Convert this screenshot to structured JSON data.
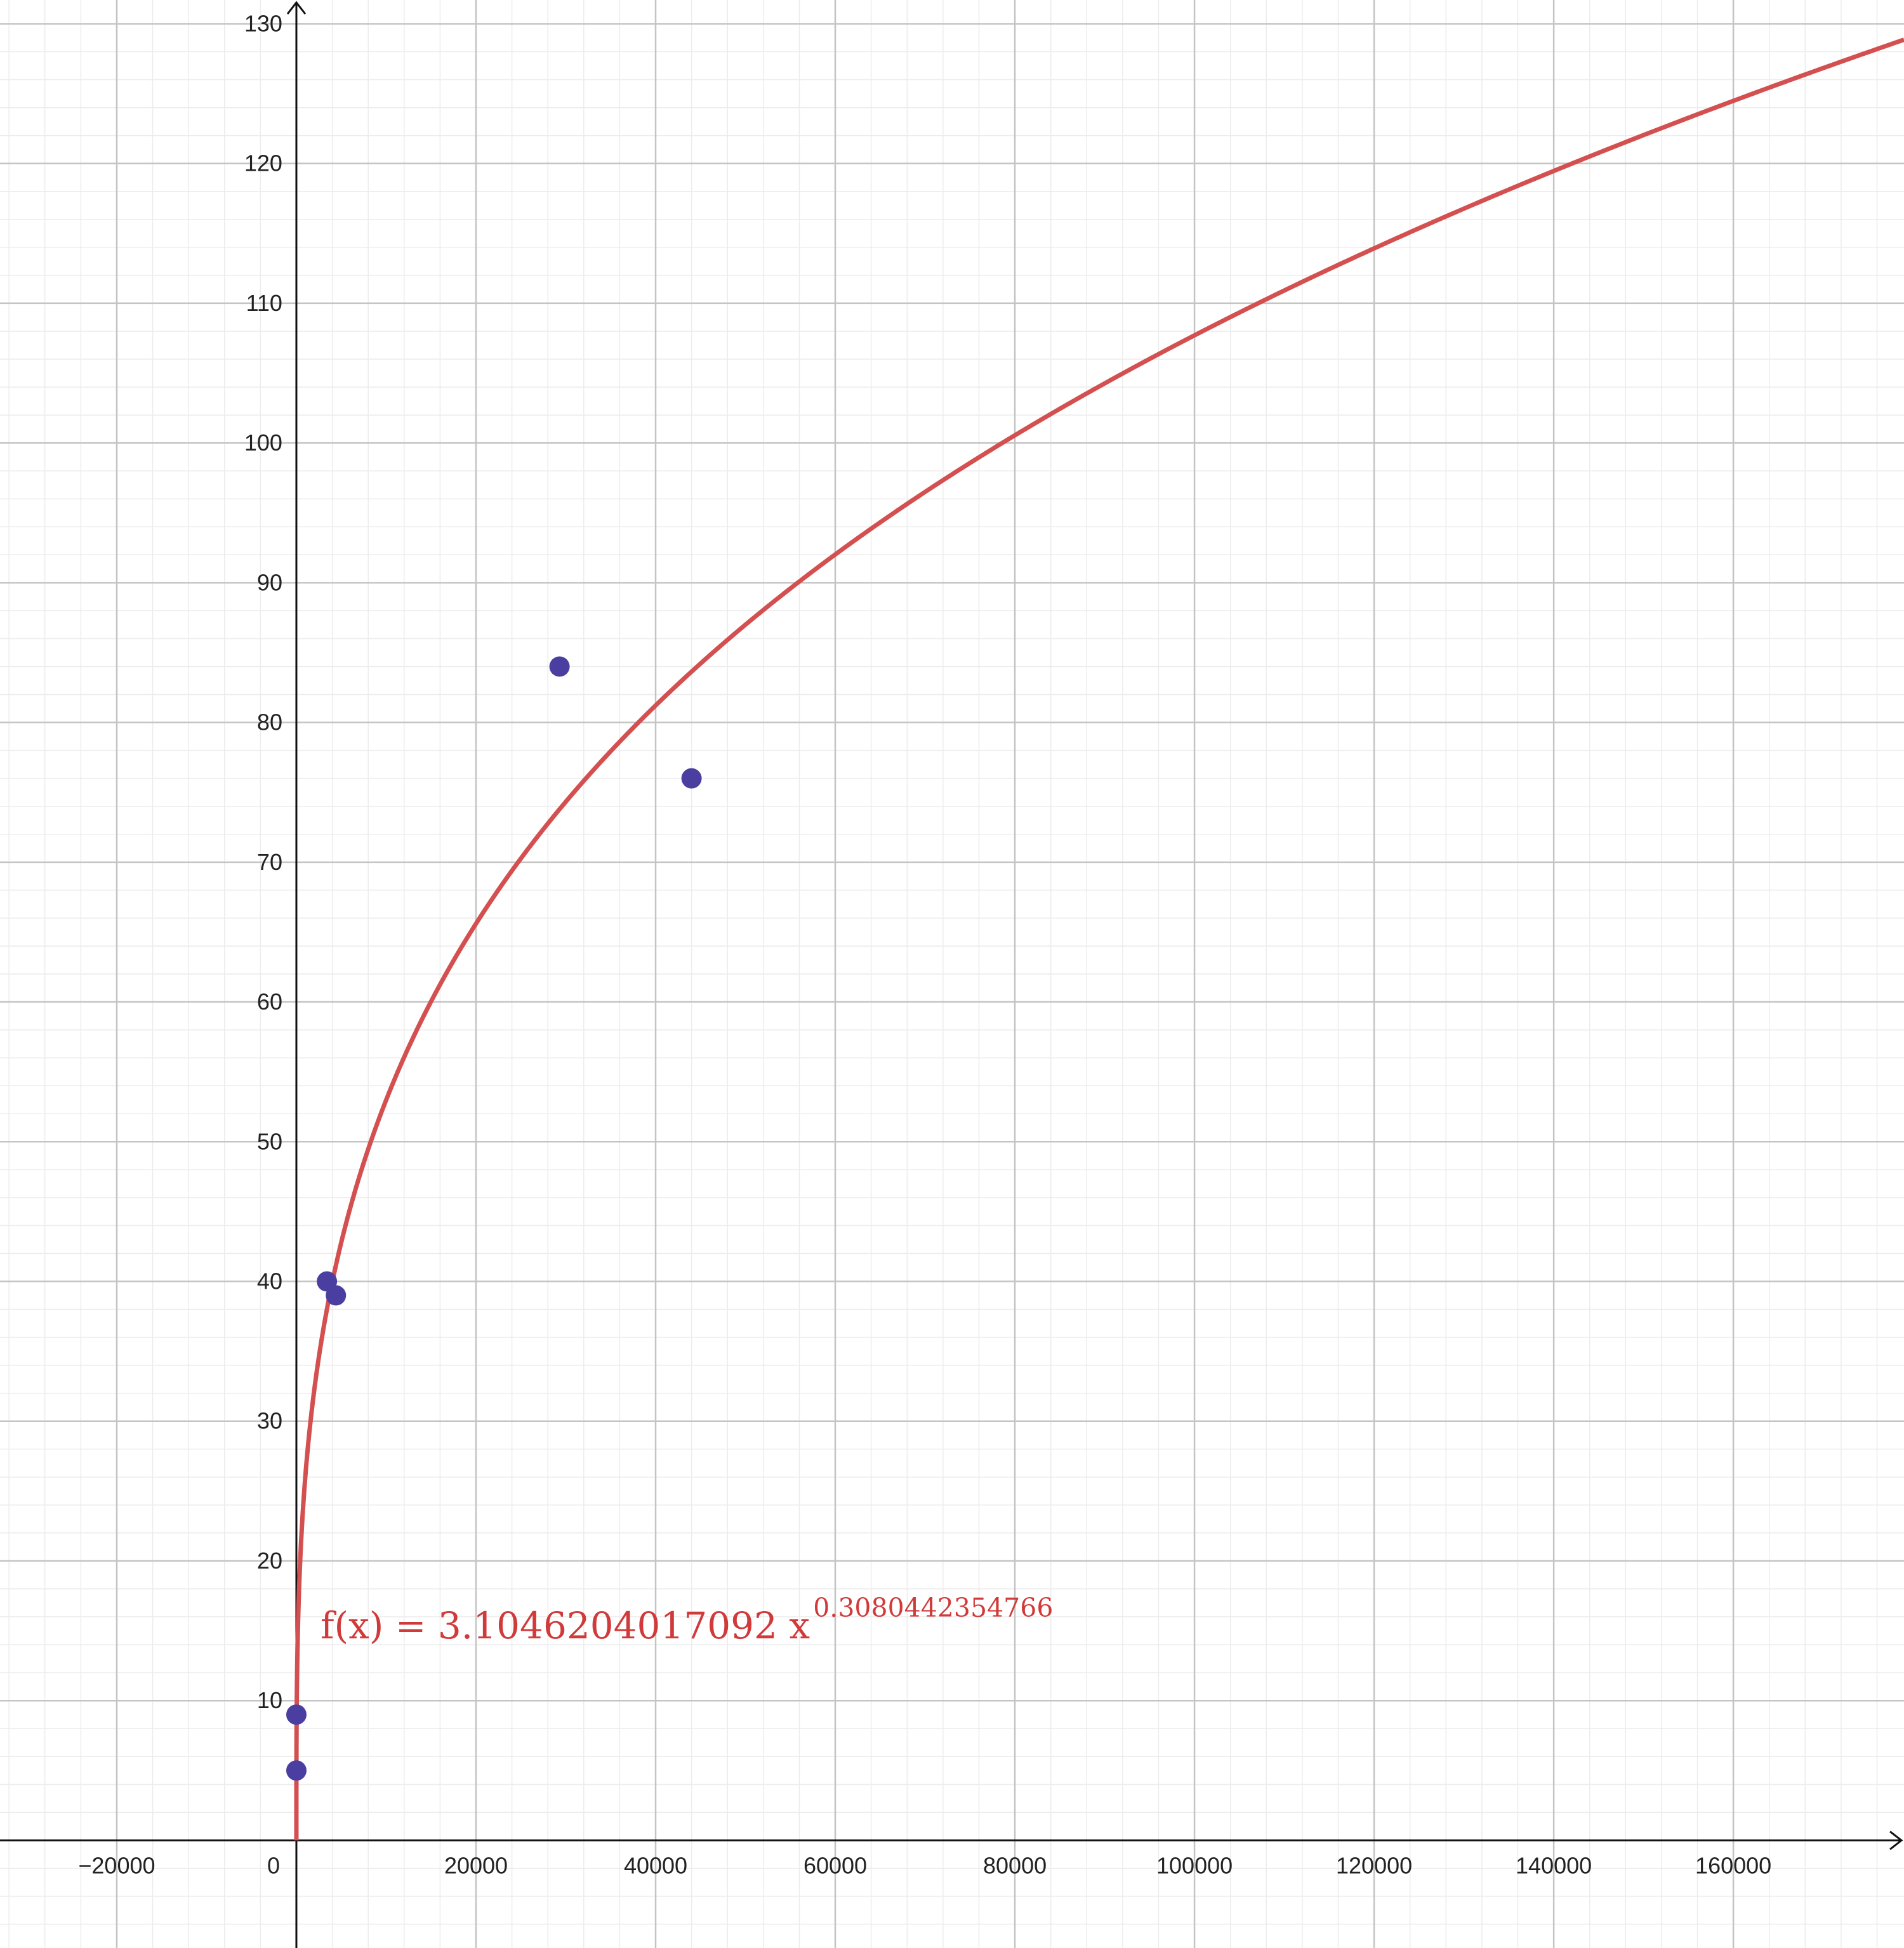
{
  "chart_data": {
    "type": "scatter",
    "title": "",
    "xlabel": "",
    "ylabel": "",
    "xlim": [
      -33000,
      179000
    ],
    "ylim": [
      -7.7,
      131.7
    ],
    "grid": true,
    "x_major_step": 20000,
    "y_major_step": 10,
    "x_minor_step": 4000,
    "y_minor_step": 2,
    "x_tick_labels": [
      "−20000",
      "0",
      "20000",
      "40000",
      "60000",
      "80000",
      "100000",
      "120000",
      "140000",
      "160000"
    ],
    "y_tick_labels": [
      "10",
      "20",
      "30",
      "40",
      "50",
      "60",
      "70",
      "80",
      "90",
      "100",
      "110",
      "120",
      "130"
    ],
    "series": [
      {
        "kind": "points",
        "color": "#4a3fa0",
        "points": [
          {
            "x": 0,
            "y": 5
          },
          {
            "x": 0,
            "y": 9
          },
          {
            "x": 3400,
            "y": 40
          },
          {
            "x": 4400,
            "y": 39
          },
          {
            "x": 29300,
            "y": 84
          },
          {
            "x": 44000,
            "y": 76
          }
        ]
      },
      {
        "kind": "curve",
        "color": "#d45050",
        "function": "power",
        "a": 3.1046204017092,
        "b": 0.3080442354766,
        "label_main": "f(x)  =  3.1046204017092 x",
        "label_exp": "0.3080442354766"
      }
    ],
    "colors": {
      "axis": "#111111",
      "grid_major": "#c4c4c4",
      "grid_minor": "#ececec"
    }
  }
}
